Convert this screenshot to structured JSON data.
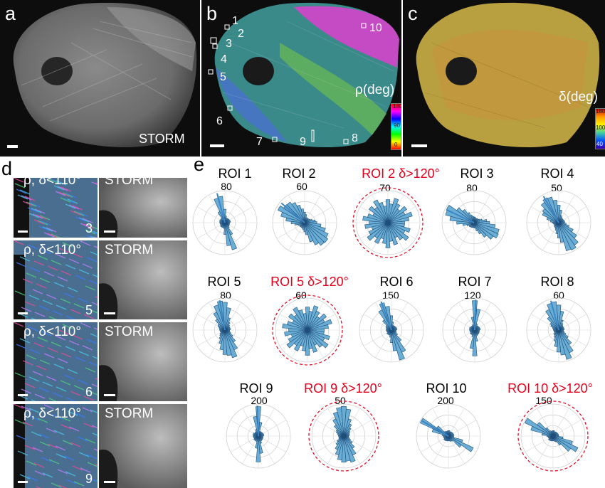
{
  "panel_a": {
    "label": "a",
    "caption": "STORM"
  },
  "panel_b": {
    "label": "b",
    "rois": [
      "1",
      "2",
      "3",
      "4",
      "5",
      "6",
      "7",
      "8",
      "9",
      "10"
    ],
    "colorbar_title": "ρ(deg)",
    "colorbar_ticks": [
      "180",
      "90",
      "0"
    ]
  },
  "panel_c": {
    "label": "c",
    "colorbar_title": "δ(deg)",
    "colorbar_ticks": [
      "180",
      "100",
      "40"
    ]
  },
  "panel_d": {
    "label": "d",
    "rows": [
      {
        "left_title": "ρ, δ<110°",
        "right_title": "STORM",
        "roi": "3"
      },
      {
        "left_title": "ρ, δ<110°",
        "right_title": "STORM",
        "roi": "5"
      },
      {
        "left_title": "ρ, δ<110°",
        "right_title": "STORM",
        "roi": "6"
      },
      {
        "left_title": "ρ, δ<110°",
        "right_title": "STORM",
        "roi": "9"
      }
    ]
  },
  "panel_e": {
    "label": "e",
    "roses": [
      {
        "title": "ROI 1",
        "red": false,
        "max": "80",
        "dir": 105,
        "spread": 10,
        "rad": 0.55
      },
      {
        "title": "ROI 2",
        "red": false,
        "max": "60",
        "dir": 140,
        "spread": 28,
        "rad": 0.7
      },
      {
        "title": "ROI 2  δ>120°",
        "red": true,
        "max": "70",
        "dir": 90,
        "spread": 999,
        "rad": 0.9
      },
      {
        "title": "ROI 3",
        "red": false,
        "max": "80",
        "dir": 155,
        "spread": 22,
        "rad": 0.7
      },
      {
        "title": "ROI 4",
        "red": false,
        "max": "50",
        "dir": 120,
        "spread": 25,
        "rad": 0.7
      },
      {
        "title": "ROI 5",
        "red": false,
        "max": "80",
        "dir": 100,
        "spread": 22,
        "rad": 0.7
      },
      {
        "title": "ROI 5  δ>120°",
        "red": true,
        "max": "60",
        "dir": 85,
        "spread": 999,
        "rad": 0.9
      },
      {
        "title": "ROI 6",
        "red": false,
        "max": "150",
        "dir": 110,
        "spread": 14,
        "rad": 0.7
      },
      {
        "title": "ROI 7",
        "red": false,
        "max": "120",
        "dir": 88,
        "spread": 8,
        "rad": 0.6
      },
      {
        "title": "ROI 8",
        "red": false,
        "max": "60",
        "dir": 105,
        "spread": 22,
        "rad": 0.7
      },
      {
        "title": "ROI 9",
        "red": false,
        "max": "200",
        "dir": 92,
        "spread": 8,
        "rad": 0.55
      },
      {
        "title": "ROI 9  δ>120°",
        "red": true,
        "max": "50",
        "dir": 95,
        "spread": 26,
        "rad": 0.9
      },
      {
        "title": "ROI 10",
        "red": false,
        "max": "200",
        "dir": 150,
        "spread": 8,
        "rad": 0.6
      },
      {
        "title": "ROI 10  δ>120°",
        "red": true,
        "max": "150",
        "dir": 150,
        "spread": 12,
        "rad": 0.9
      }
    ],
    "rose_fill": "#6aaed6",
    "rose_stroke": "#1f4e79",
    "dashed_circle": "#e3001b"
  }
}
